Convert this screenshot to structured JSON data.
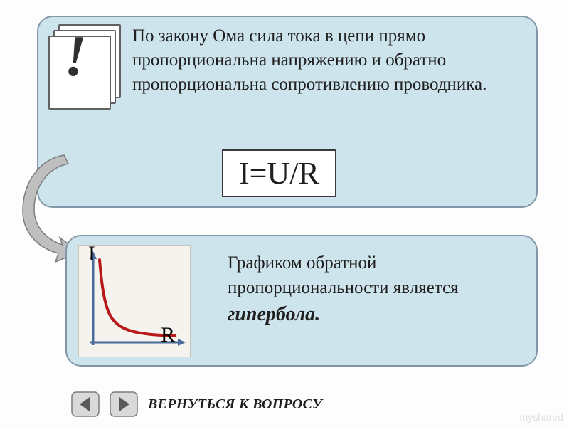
{
  "colors": {
    "card_fill": "#cde4ec",
    "card_border": "#8296a8",
    "text": "#1f1f1f",
    "excl": "#303030",
    "arrow_fill": "#bfbfbf",
    "arrow_stroke": "#7d7d7d",
    "chart_bg": "#f5f3ed",
    "chart_axis": "#4a6a9a",
    "chart_curve": "#b81818",
    "nav_fill": "#d9d9d9",
    "nav_stroke": "#7d7d7d",
    "nav_arrow": "#5a5a5a",
    "watermark": "#cccccc"
  },
  "top_card": {
    "icon": {
      "glyph": "!",
      "pages": 3
    },
    "text": "По закону Ома сила тока в цепи прямо пропорциональна напряжению и обратно пропорциональна сопротивлению проводника.",
    "formula": "I=U/R"
  },
  "bottom_card": {
    "chart": {
      "type": "line",
      "y_label": "I",
      "x_label": "R",
      "xlim": [
        0,
        10
      ],
      "ylim": [
        0,
        10
      ],
      "curve_points": [
        [
          0.7,
          9.2
        ],
        [
          0.9,
          7.0
        ],
        [
          1.2,
          5.0
        ],
        [
          1.6,
          3.5
        ],
        [
          2.2,
          2.4
        ],
        [
          3.2,
          1.6
        ],
        [
          4.5,
          1.15
        ],
        [
          6.0,
          0.9
        ],
        [
          7.5,
          0.78
        ],
        [
          9.0,
          0.72
        ]
      ],
      "curve_width": 4,
      "axis_width": 3
    },
    "text_leadin": "Графиком обратной пропорциональности является",
    "text_emph": "гипербола."
  },
  "nav": {
    "back_label": "ВЕРНУТЬСЯ К ВОПРОСУ"
  },
  "watermark": "myshared"
}
